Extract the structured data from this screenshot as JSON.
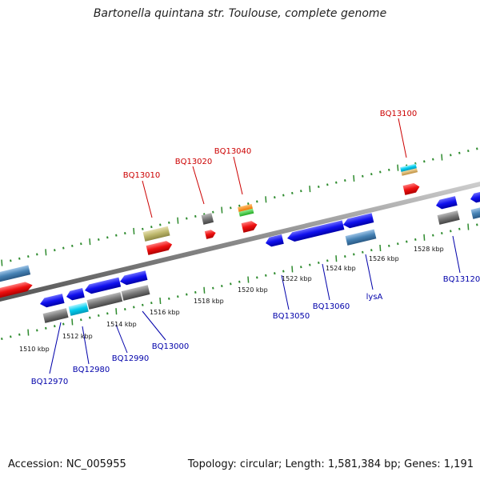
{
  "title": "Bartonella quintana str. Toulouse, complete genome",
  "footer": {
    "accession": "Accession: NC_005955",
    "topology": "Topology: circular; Length: 1,581,384 bp; Genes: 1,191"
  },
  "colors": {
    "forward_label": "#cc0000",
    "reverse_label": "#0000aa",
    "backbone": "#888888",
    "tick": "#2e8b2e"
  },
  "scale_labels": [
    "1510 kbp",
    "1512 kbp",
    "1514 kbp",
    "1516 kbp",
    "1518 kbp",
    "1520 kbp",
    "1522 kbp",
    "1524 kbp",
    "1526 kbp",
    "1528 kbp"
  ],
  "forward_genes": [
    "BQ13010",
    "BQ13020",
    "BQ13040",
    "BQ13100"
  ],
  "reverse_genes": [
    "BQ12970",
    "BQ12980",
    "BQ12990",
    "BQ13000",
    "BQ13050",
    "BQ13060",
    "lysA",
    "BQ13120"
  ]
}
